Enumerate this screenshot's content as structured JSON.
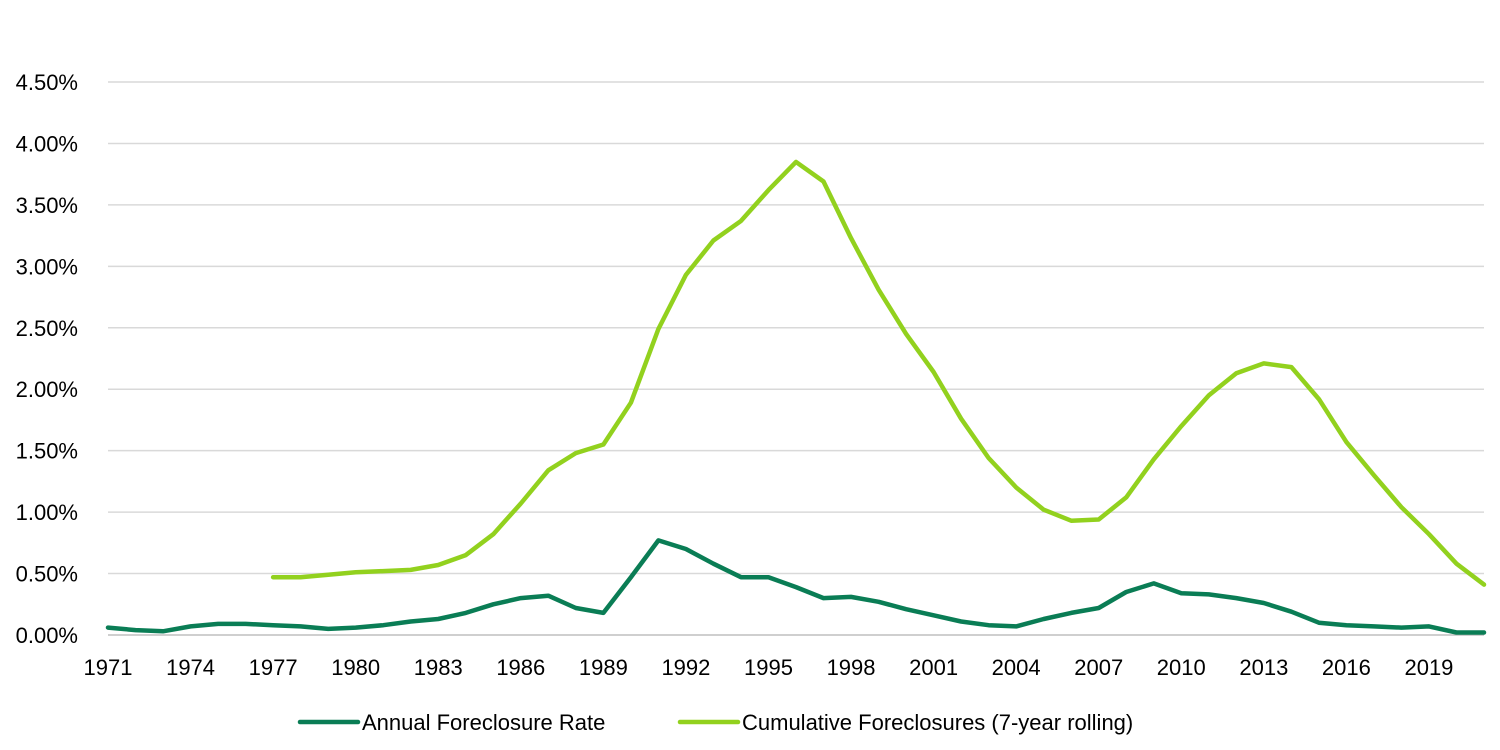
{
  "chart_data": {
    "type": "line",
    "title": "",
    "xlabel": "",
    "ylabel": "",
    "ylim": [
      0,
      0.045
    ],
    "y_ticks": [
      "0.00%",
      "0.50%",
      "1.00%",
      "1.50%",
      "2.00%",
      "2.50%",
      "3.00%",
      "3.50%",
      "4.00%",
      "4.50%"
    ],
    "x_ticks": [
      "1971",
      "1974",
      "1977",
      "1980",
      "1983",
      "1986",
      "1989",
      "1992",
      "1995",
      "1998",
      "2001",
      "2004",
      "2007",
      "2010",
      "2013",
      "2016",
      "2019"
    ],
    "x": [
      1971,
      1972,
      1973,
      1974,
      1975,
      1976,
      1977,
      1978,
      1979,
      1980,
      1981,
      1982,
      1983,
      1984,
      1985,
      1986,
      1987,
      1988,
      1989,
      1990,
      1991,
      1992,
      1993,
      1994,
      1995,
      1996,
      1997,
      1998,
      1999,
      2000,
      2001,
      2002,
      2003,
      2004,
      2005,
      2006,
      2007,
      2008,
      2009,
      2010,
      2011,
      2012,
      2013,
      2014,
      2015,
      2016,
      2017,
      2018,
      2019,
      2020,
      2021
    ],
    "grid": true,
    "legend_position": "bottom",
    "series": [
      {
        "name": "Annual Foreclosure Rate",
        "color": "#0a7d55",
        "values": [
          0.0006,
          0.0004,
          0.0003,
          0.0007,
          0.0009,
          0.0009,
          0.0008,
          0.0007,
          0.0005,
          0.0006,
          0.0008,
          0.0011,
          0.0013,
          0.0018,
          0.0025,
          0.003,
          0.0032,
          0.0022,
          0.0018,
          0.0047,
          0.0077,
          0.007,
          0.0058,
          0.0047,
          0.0047,
          0.0039,
          0.003,
          0.0031,
          0.0027,
          0.0021,
          0.0016,
          0.0011,
          0.0008,
          0.0007,
          0.0013,
          0.0018,
          0.0022,
          0.0035,
          0.0042,
          0.0034,
          0.0033,
          0.003,
          0.0026,
          0.0019,
          0.001,
          0.0008,
          0.0007,
          0.0006,
          0.0007,
          0.0002,
          0.0002
        ]
      },
      {
        "name": "Cumulative Foreclosures (7-year rolling)",
        "color": "#92d11e",
        "values": [
          null,
          null,
          null,
          null,
          null,
          null,
          0.0047,
          0.0047,
          0.0049,
          0.0051,
          0.0052,
          0.0053,
          0.0057,
          0.0065,
          0.0082,
          0.0107,
          0.0134,
          0.0148,
          0.0155,
          0.0189,
          0.0249,
          0.0293,
          0.0321,
          0.0337,
          0.0362,
          0.0385,
          0.0369,
          0.0323,
          0.0281,
          0.0245,
          0.0214,
          0.0176,
          0.0144,
          0.012,
          0.0102,
          0.0093,
          0.0094,
          0.0112,
          0.0143,
          0.017,
          0.0195,
          0.0213,
          0.0221,
          0.0218,
          0.0192,
          0.0157,
          0.013,
          0.0104,
          0.0082,
          0.0058,
          0.0041
        ]
      }
    ]
  }
}
